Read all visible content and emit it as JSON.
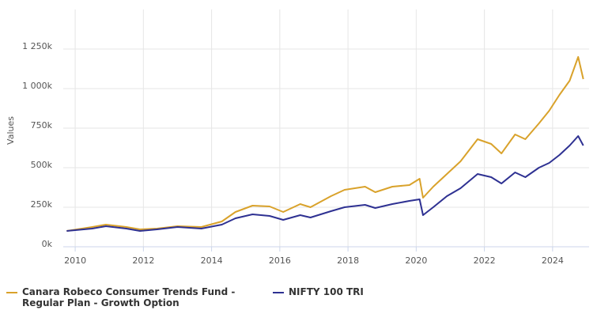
{
  "chart_data": {
    "type": "line",
    "y_label": "Values",
    "xlim": [
      2009.65,
      2025.07
    ],
    "xticks": [
      2010,
      2012,
      2014,
      2016,
      2018,
      2020,
      2022,
      2024
    ],
    "ylim": [
      0,
      1500000
    ],
    "yticks": [
      {
        "value": 0,
        "label": "0k"
      },
      {
        "value": 250000,
        "label": "250k"
      },
      {
        "value": 500000,
        "label": "500k"
      },
      {
        "value": 750000,
        "label": "750k"
      },
      {
        "value": 1000000,
        "label": "1 000k"
      },
      {
        "value": 1250000,
        "label": "1 250k"
      }
    ],
    "grid": true,
    "legend": "bottom",
    "x": [
      2009.75,
      2010.5,
      2010.9,
      2011.5,
      2011.9,
      2012.4,
      2013.0,
      2013.7,
      2014.3,
      2014.7,
      2015.2,
      2015.7,
      2016.1,
      2016.6,
      2016.9,
      2017.5,
      2017.9,
      2018.5,
      2018.8,
      2019.3,
      2019.8,
      2020.1,
      2020.2,
      2020.5,
      2020.9,
      2021.3,
      2021.8,
      2022.2,
      2022.5,
      2022.9,
      2023.2,
      2023.6,
      2023.9,
      2024.2,
      2024.5,
      2024.75,
      2024.9
    ],
    "series": [
      {
        "name": "Canara Robeco Consumer Trends Fund - Regular Plan - Growth Option",
        "color": "#d9a22b",
        "values": [
          100000,
          125000,
          140000,
          125000,
          110000,
          115000,
          130000,
          125000,
          160000,
          220000,
          260000,
          255000,
          220000,
          270000,
          250000,
          320000,
          360000,
          380000,
          345000,
          380000,
          390000,
          430000,
          310000,
          380000,
          460000,
          540000,
          680000,
          650000,
          590000,
          710000,
          680000,
          780000,
          860000,
          960000,
          1050000,
          1200000,
          1060000
        ]
      },
      {
        "name": "NIFTY 100 TRI",
        "color": "#2e3192",
        "values": [
          100000,
          115000,
          130000,
          115000,
          100000,
          110000,
          125000,
          115000,
          140000,
          180000,
          205000,
          195000,
          170000,
          200000,
          185000,
          225000,
          250000,
          265000,
          245000,
          270000,
          290000,
          300000,
          200000,
          250000,
          320000,
          370000,
          460000,
          440000,
          400000,
          470000,
          440000,
          500000,
          530000,
          580000,
          640000,
          700000,
          640000
        ]
      }
    ]
  }
}
